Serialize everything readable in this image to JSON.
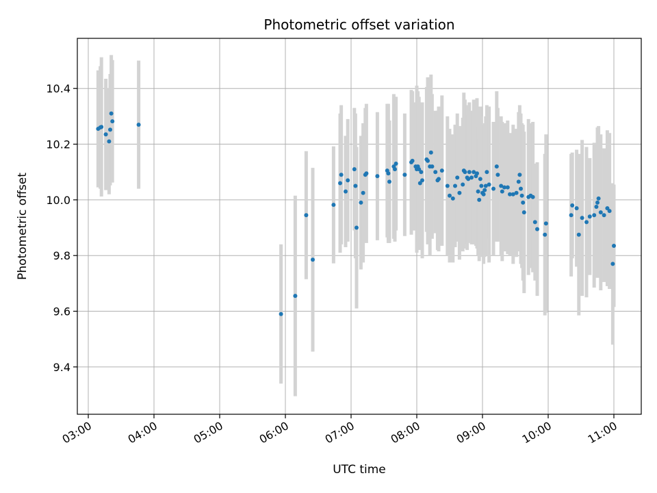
{
  "chart_data": {
    "type": "scatter",
    "title": "Photometric offset variation",
    "xlabel": "UTC time",
    "ylabel": "Photometric offset",
    "x_unit": "UTC time of day (HH:MM)",
    "xlim": [
      "02:50",
      "11:25"
    ],
    "ylim": [
      9.23,
      10.58
    ],
    "x_ticks": [
      "03:00",
      "04:00",
      "05:00",
      "06:00",
      "07:00",
      "08:00",
      "09:00",
      "10:00",
      "11:00"
    ],
    "y_ticks": [
      "9.4",
      "9.6",
      "9.8",
      "10.0",
      "10.2",
      "10.4"
    ],
    "grid": true,
    "colors": {
      "points": "#1f77b4",
      "errorbars": "#d3d3d3",
      "grid": "#b0b0b0"
    },
    "series": [
      {
        "points": [
          {
            "x": "03:09",
            "y": 10.255,
            "err": 0.21
          },
          {
            "x": "03:11",
            "y": 10.26,
            "err": 0.22
          },
          {
            "x": "03:12",
            "y": 10.262,
            "err": 0.25
          },
          {
            "x": "03:16",
            "y": 10.235,
            "err": 0.2
          },
          {
            "x": "03:19",
            "y": 10.21,
            "err": 0.19
          },
          {
            "x": "03:20",
            "y": 10.252,
            "err": 0.2
          },
          {
            "x": "03:21",
            "y": 10.31,
            "err": 0.21
          },
          {
            "x": "03:22",
            "y": 10.282,
            "err": 0.22
          },
          {
            "x": "03:46",
            "y": 10.27,
            "err": 0.23
          },
          {
            "x": "05:56",
            "y": 9.59,
            "err": 0.25
          },
          {
            "x": "06:09",
            "y": 9.655,
            "err": 0.36
          },
          {
            "x": "06:19",
            "y": 9.945,
            "err": 0.23
          },
          {
            "x": "06:25",
            "y": 9.785,
            "err": 0.33
          },
          {
            "x": "06:44",
            "y": 9.982,
            "err": 0.21
          },
          {
            "x": "06:50",
            "y": 10.06,
            "err": 0.25
          },
          {
            "x": "06:51",
            "y": 10.09,
            "err": 0.25
          },
          {
            "x": "06:55",
            "y": 10.03,
            "err": 0.2
          },
          {
            "x": "06:57",
            "y": 10.07,
            "err": 0.22
          },
          {
            "x": "07:03",
            "y": 10.11,
            "err": 0.22
          },
          {
            "x": "07:04",
            "y": 10.05,
            "err": 0.26
          },
          {
            "x": "07:05",
            "y": 9.9,
            "err": 0.29
          },
          {
            "x": "07:09",
            "y": 9.99,
            "err": 0.24
          },
          {
            "x": "07:11",
            "y": 10.025,
            "err": 0.25
          },
          {
            "x": "07:13",
            "y": 10.09,
            "err": 0.24
          },
          {
            "x": "07:14",
            "y": 10.095,
            "err": 0.25
          },
          {
            "x": "07:24",
            "y": 10.085,
            "err": 0.23
          },
          {
            "x": "07:33",
            "y": 10.105,
            "err": 0.24
          },
          {
            "x": "07:34",
            "y": 10.095,
            "err": 0.25
          },
          {
            "x": "07:35",
            "y": 10.065,
            "err": 0.22
          },
          {
            "x": "07:39",
            "y": 10.12,
            "err": 0.26
          },
          {
            "x": "07:40",
            "y": 10.11,
            "err": 0.26
          },
          {
            "x": "07:41",
            "y": 10.13,
            "err": 0.24
          },
          {
            "x": "07:49",
            "y": 10.09,
            "err": 0.22
          },
          {
            "x": "07:55",
            "y": 10.135,
            "err": 0.26
          },
          {
            "x": "07:56",
            "y": 10.14,
            "err": 0.25
          },
          {
            "x": "07:59",
            "y": 10.12,
            "err": 0.23
          },
          {
            "x": "08:00",
            "y": 10.11,
            "err": 0.3
          },
          {
            "x": "08:01",
            "y": 10.12,
            "err": 0.27
          },
          {
            "x": "08:02",
            "y": 10.11,
            "err": 0.26
          },
          {
            "x": "08:03",
            "y": 10.06,
            "err": 0.24
          },
          {
            "x": "08:04",
            "y": 10.1,
            "err": 0.25
          },
          {
            "x": "08:05",
            "y": 10.07,
            "err": 0.28
          },
          {
            "x": "08:09",
            "y": 10.145,
            "err": 0.26
          },
          {
            "x": "08:10",
            "y": 10.14,
            "err": 0.3
          },
          {
            "x": "08:12",
            "y": 10.12,
            "err": 0.32
          },
          {
            "x": "08:13",
            "y": 10.17,
            "err": 0.28
          },
          {
            "x": "08:14",
            "y": 10.12,
            "err": 0.26
          },
          {
            "x": "08:17",
            "y": 10.1,
            "err": 0.22
          },
          {
            "x": "08:19",
            "y": 10.07,
            "err": 0.25
          },
          {
            "x": "08:20",
            "y": 10.075,
            "err": 0.26
          },
          {
            "x": "08:23",
            "y": 10.105,
            "err": 0.27
          },
          {
            "x": "08:28",
            "y": 10.05,
            "err": 0.25
          },
          {
            "x": "08:30",
            "y": 10.015,
            "err": 0.24
          },
          {
            "x": "08:33",
            "y": 10.005,
            "err": 0.23
          },
          {
            "x": "08:35",
            "y": 10.05,
            "err": 0.22
          },
          {
            "x": "08:37",
            "y": 10.08,
            "err": 0.23
          },
          {
            "x": "08:39",
            "y": 10.025,
            "err": 0.24
          },
          {
            "x": "08:42",
            "y": 10.055,
            "err": 0.24
          },
          {
            "x": "08:43",
            "y": 10.105,
            "err": 0.28
          },
          {
            "x": "08:44",
            "y": 10.1,
            "err": 0.26
          },
          {
            "x": "08:46",
            "y": 10.08,
            "err": 0.26
          },
          {
            "x": "08:47",
            "y": 10.075,
            "err": 0.23
          },
          {
            "x": "08:48",
            "y": 10.1,
            "err": 0.25
          },
          {
            "x": "08:50",
            "y": 10.08,
            "err": 0.24
          },
          {
            "x": "08:52",
            "y": 10.1,
            "err": 0.26
          },
          {
            "x": "08:54",
            "y": 10.085,
            "err": 0.25
          },
          {
            "x": "08:55",
            "y": 10.095,
            "err": 0.27
          },
          {
            "x": "08:56",
            "y": 10.03,
            "err": 0.23
          },
          {
            "x": "08:57",
            "y": 10.0,
            "err": 0.22
          },
          {
            "x": "08:58",
            "y": 10.075,
            "err": 0.26
          },
          {
            "x": "08:59",
            "y": 10.05,
            "err": 0.25
          },
          {
            "x": "09:00",
            "y": 10.025,
            "err": 0.23
          },
          {
            "x": "09:01",
            "y": 10.02,
            "err": 0.25
          },
          {
            "x": "09:02",
            "y": 10.035,
            "err": 0.24
          },
          {
            "x": "09:03",
            "y": 10.05,
            "err": 0.25
          },
          {
            "x": "09:04",
            "y": 10.1,
            "err": 0.24
          },
          {
            "x": "09:06",
            "y": 10.055,
            "err": 0.28
          },
          {
            "x": "09:10",
            "y": 10.04,
            "err": 0.24
          },
          {
            "x": "09:13",
            "y": 10.12,
            "err": 0.27
          },
          {
            "x": "09:14",
            "y": 10.09,
            "err": 0.24
          },
          {
            "x": "09:17",
            "y": 10.05,
            "err": 0.25
          },
          {
            "x": "09:18",
            "y": 10.03,
            "err": 0.25
          },
          {
            "x": "09:20",
            "y": 10.045,
            "err": 0.23
          },
          {
            "x": "09:23",
            "y": 10.045,
            "err": 0.24
          },
          {
            "x": "09:25",
            "y": 10.02,
            "err": 0.22
          },
          {
            "x": "09:28",
            "y": 10.02,
            "err": 0.25
          },
          {
            "x": "09:31",
            "y": 10.025,
            "err": 0.23
          },
          {
            "x": "09:33",
            "y": 10.065,
            "err": 0.25
          },
          {
            "x": "09:34",
            "y": 10.09,
            "err": 0.25
          },
          {
            "x": "09:35",
            "y": 10.04,
            "err": 0.27
          },
          {
            "x": "09:36",
            "y": 10.015,
            "err": 0.26
          },
          {
            "x": "09:37",
            "y": 9.99,
            "err": 0.28
          },
          {
            "x": "09:38",
            "y": 9.955,
            "err": 0.29
          },
          {
            "x": "09:42",
            "y": 10.01,
            "err": 0.28
          },
          {
            "x": "09:44",
            "y": 10.015,
            "err": 0.26
          },
          {
            "x": "09:46",
            "y": 10.01,
            "err": 0.27
          },
          {
            "x": "09:48",
            "y": 9.92,
            "err": 0.21
          },
          {
            "x": "09:50",
            "y": 9.895,
            "err": 0.24
          },
          {
            "x": "09:57",
            "y": 9.875,
            "err": 0.29
          },
          {
            "x": "09:58",
            "y": 9.915,
            "err": 0.32
          },
          {
            "x": "10:21",
            "y": 9.945,
            "err": 0.22
          },
          {
            "x": "10:22",
            "y": 9.98,
            "err": 0.19
          },
          {
            "x": "10:26",
            "y": 9.97,
            "err": 0.21
          },
          {
            "x": "10:28",
            "y": 9.875,
            "err": 0.29
          },
          {
            "x": "10:31",
            "y": 9.935,
            "err": 0.28
          },
          {
            "x": "10:35",
            "y": 9.92,
            "err": 0.27
          },
          {
            "x": "10:38",
            "y": 9.94,
            "err": 0.21
          },
          {
            "x": "10:42",
            "y": 9.945,
            "err": 0.26
          },
          {
            "x": "10:44",
            "y": 9.975,
            "err": 0.23
          },
          {
            "x": "10:45",
            "y": 9.99,
            "err": 0.27
          },
          {
            "x": "10:46",
            "y": 10.005,
            "err": 0.26
          },
          {
            "x": "10:48",
            "y": 9.955,
            "err": 0.28
          },
          {
            "x": "10:51",
            "y": 9.945,
            "err": 0.24
          },
          {
            "x": "10:54",
            "y": 9.97,
            "err": 0.28
          },
          {
            "x": "10:56",
            "y": 9.96,
            "err": 0.28
          },
          {
            "x": "10:59",
            "y": 9.77,
            "err": 0.29
          },
          {
            "x": "11:00",
            "y": 9.835,
            "err": 0.22
          }
        ]
      }
    ]
  }
}
